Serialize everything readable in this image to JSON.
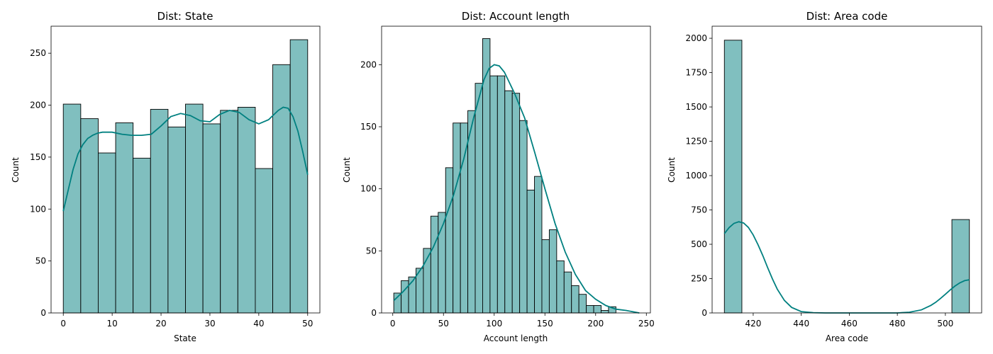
{
  "colors": {
    "bar_fill": "#80bfbf",
    "kde_line": "#008080",
    "edge": "#000000"
  },
  "chart_data": [
    {
      "type": "histogram",
      "title": "Dist: State",
      "xlabel": "State",
      "ylabel": "Count",
      "xlim": [
        -2.5,
        52.5
      ],
      "ylim": [
        0,
        276
      ],
      "xticks": [
        0,
        10,
        20,
        30,
        40,
        50
      ],
      "yticks": [
        0,
        50,
        100,
        150,
        200,
        250
      ],
      "bin_edges": [
        0,
        3.571,
        7.143,
        10.714,
        14.286,
        17.857,
        21.429,
        25,
        28.571,
        32.143,
        35.714,
        39.286,
        42.857,
        46.429,
        50
      ],
      "counts": [
        201,
        187,
        154,
        183,
        149,
        196,
        179,
        201,
        182,
        195,
        198,
        139,
        239,
        263
      ],
      "kde": {
        "x": [
          0,
          1,
          2,
          3,
          4,
          5,
          6,
          7,
          8,
          9,
          10,
          12,
          14,
          16,
          18,
          20,
          22,
          24,
          26,
          28,
          30,
          32,
          34,
          36,
          38,
          40,
          42,
          44,
          45,
          46,
          47,
          48,
          49,
          50
        ],
        "y": [
          98,
          118,
          138,
          153,
          162,
          168,
          171,
          173,
          174,
          174,
          174,
          172,
          171,
          171,
          172,
          180,
          189,
          192,
          190,
          185,
          184,
          191,
          195,
          193,
          186,
          182,
          186,
          195,
          198,
          197,
          189,
          175,
          155,
          133
        ]
      }
    },
    {
      "type": "histogram",
      "title": "Dist: Account length",
      "xlabel": "Account length",
      "ylabel": "Count",
      "xlim": [
        -11,
        254
      ],
      "ylim": [
        0,
        231
      ],
      "xticks": [
        0,
        50,
        100,
        150,
        200,
        250
      ],
      "yticks": [
        0,
        50,
        100,
        150,
        200
      ],
      "bin_width": 7.3,
      "bin_start": 1,
      "counts": [
        16,
        26,
        29,
        36,
        52,
        78,
        81,
        117,
        153,
        153,
        163,
        185,
        221,
        191,
        191,
        179,
        177,
        155,
        99,
        110,
        59,
        67,
        42,
        33,
        22,
        15,
        6,
        6,
        2,
        5
      ],
      "kde": {
        "x": [
          1,
          10,
          20,
          30,
          40,
          50,
          60,
          70,
          80,
          90,
          95,
          100,
          105,
          110,
          120,
          130,
          140,
          150,
          160,
          170,
          180,
          190,
          200,
          210,
          220,
          230,
          243
        ],
        "y": [
          10,
          17,
          26,
          38,
          53,
          72,
          95,
          124,
          158,
          188,
          197,
          200,
          199,
          194,
          177,
          157,
          129,
          100,
          72,
          49,
          31,
          18,
          11,
          6,
          3,
          2,
          0
        ]
      }
    },
    {
      "type": "histogram",
      "title": "Dist: Area code",
      "xlabel": "Area code",
      "ylabel": "Count",
      "xlim": [
        402.9,
        515.1
      ],
      "ylim": [
        0,
        2088
      ],
      "xticks": [
        420,
        440,
        460,
        480,
        500
      ],
      "yticks": [
        0,
        250,
        500,
        750,
        1000,
        1250,
        1500,
        1750,
        2000
      ],
      "bin_edges": [
        408,
        415.286,
        422.571,
        429.857,
        437.143,
        444.429,
        451.714,
        459,
        466.286,
        473.571,
        480.857,
        488.143,
        495.429,
        502.714,
        510
      ],
      "counts": [
        1986,
        0,
        0,
        0,
        0,
        0,
        0,
        0,
        0,
        0,
        0,
        0,
        0,
        680
      ],
      "kde": {
        "x": [
          408,
          410,
          412,
          414,
          416,
          418,
          420,
          422,
          424,
          426,
          428,
          430,
          433,
          436,
          440,
          445,
          450,
          460,
          470,
          480,
          485,
          490,
          494,
          496,
          498,
          500,
          502,
          504,
          506,
          508,
          510
        ],
        "y": [
          578,
          622,
          652,
          664,
          655,
          623,
          568,
          497,
          417,
          331,
          248,
          174,
          91,
          40,
          10,
          2,
          0,
          0,
          0,
          0,
          5,
          22,
          55,
          78,
          106,
          136,
          167,
          196,
          219,
          235,
          242
        ]
      }
    }
  ]
}
